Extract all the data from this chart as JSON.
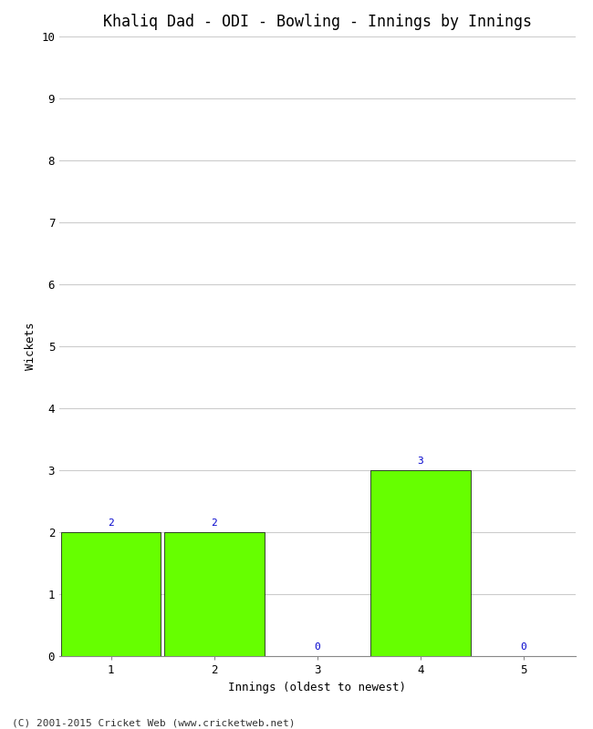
{
  "title": "Khaliq Dad - ODI - Bowling - Innings by Innings",
  "xlabel": "Innings (oldest to newest)",
  "ylabel": "Wickets",
  "categories": [
    "1",
    "2",
    "3",
    "4",
    "5"
  ],
  "values": [
    2,
    2,
    0,
    3,
    0
  ],
  "bar_color": "#66ff00",
  "bar_edge_color": "#000000",
  "ylim": [
    0,
    10
  ],
  "yticks": [
    0,
    1,
    2,
    3,
    4,
    5,
    6,
    7,
    8,
    9,
    10
  ],
  "annotation_color": "#0000cc",
  "annotation_fontsize": 8,
  "title_fontsize": 12,
  "axis_label_fontsize": 9,
  "tick_fontsize": 9,
  "footer": "(C) 2001-2015 Cricket Web (www.cricketweb.net)",
  "footer_fontsize": 8,
  "background_color": "#ffffff",
  "grid_color": "#cccccc",
  "bar_width": 0.97,
  "xlim_left": 0.5,
  "xlim_right": 5.5
}
